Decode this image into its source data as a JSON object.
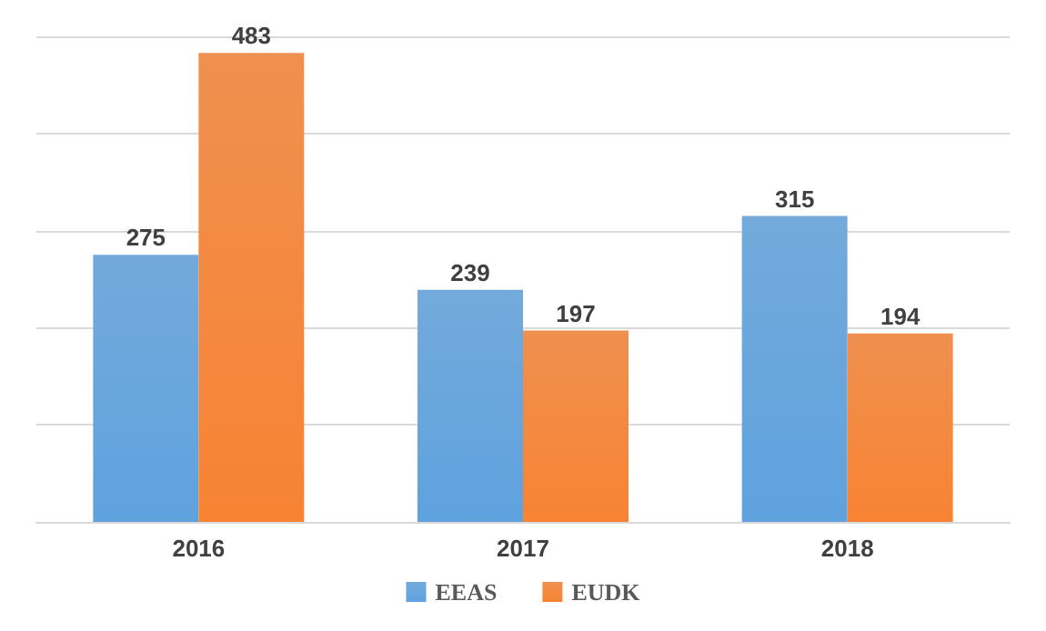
{
  "chart_data": {
    "type": "bar",
    "categories": [
      "2016",
      "2017",
      "2018"
    ],
    "series": [
      {
        "name": "EEAS",
        "color": "#5b9bd5",
        "values": [
          275,
          239,
          315
        ]
      },
      {
        "name": "EUDK",
        "color": "#ed7d31",
        "values": [
          483,
          197,
          194
        ]
      }
    ],
    "ylim": [
      0,
      500
    ],
    "yticks": [
      {
        "value": 0,
        "label": null
      },
      {
        "value": 100,
        "label": null
      },
      {
        "value": 200,
        "label": null
      },
      {
        "value": 300,
        "label": null
      },
      {
        "value": 400,
        "label": null
      },
      {
        "value": 500,
        "label": null
      }
    ],
    "tick_labels": "x",
    "grid": "y",
    "data_labels": true,
    "legend": "bottom"
  }
}
